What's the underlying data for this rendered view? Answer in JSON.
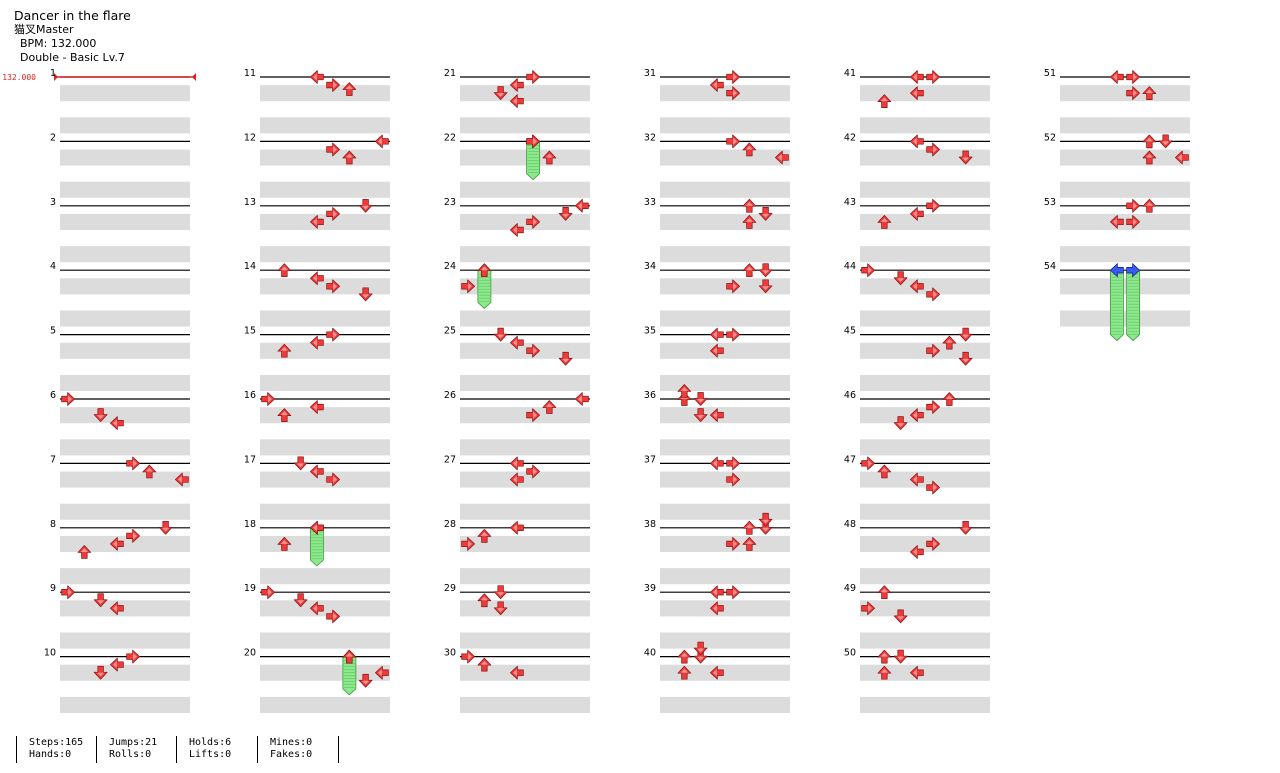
{
  "header": {
    "title": "Dancer in the flare",
    "difficulty": "猫叉Master",
    "bpm_text": "BPM: 132.000",
    "mode_text": "Double - Basic Lv.7"
  },
  "bpm_marker": "132.000",
  "stats": [
    {
      "line1": "Steps:165",
      "line2": "Hands:0"
    },
    {
      "line1": "Jumps:21",
      "line2": "Rolls:0"
    },
    {
      "line1": "Holds:6",
      "line2": "Lifts:0"
    },
    {
      "line1": "Mines:0",
      "line2": "Fakes:0"
    }
  ],
  "colors": {
    "tap": "#f03a3a",
    "hold_body": "#8ee88e",
    "blue": "#3a5af0",
    "band": "#dcdcdc"
  },
  "notes": [
    [
      6,
      0,
      0
    ],
    [
      6,
      1,
      2
    ],
    [
      6,
      1.5,
      3
    ],
    [
      7,
      0,
      4
    ],
    [
      7,
      0.5,
      5
    ],
    [
      7,
      1,
      7
    ],
    [
      8,
      0,
      6
    ],
    [
      8,
      0.5,
      4
    ],
    [
      8,
      1,
      3
    ],
    [
      8,
      1.5,
      1
    ],
    [
      9,
      0,
      0
    ],
    [
      9,
      0.5,
      2
    ],
    [
      9,
      1,
      3
    ],
    [
      10,
      0,
      4
    ],
    [
      10,
      0.5,
      3
    ],
    [
      10,
      1,
      2
    ],
    [
      11,
      0,
      3
    ],
    [
      11,
      0.5,
      4
    ],
    [
      11,
      0.75,
      5
    ],
    [
      12,
      0,
      7
    ],
    [
      12,
      0.5,
      4
    ],
    [
      12,
      1,
      5
    ],
    [
      13,
      0,
      6
    ],
    [
      13,
      0.5,
      4
    ],
    [
      13,
      1,
      3
    ],
    [
      14,
      0,
      1
    ],
    [
      14,
      0.5,
      3
    ],
    [
      14,
      1,
      4
    ],
    [
      14,
      1.5,
      6
    ],
    [
      15,
      0,
      4
    ],
    [
      15,
      0.5,
      3
    ],
    [
      15,
      1,
      1
    ],
    [
      16,
      0,
      0
    ],
    [
      16,
      0.5,
      3
    ],
    [
      16,
      1,
      1
    ],
    [
      17,
      0,
      2
    ],
    [
      17,
      0.5,
      3
    ],
    [
      17,
      1,
      4
    ],
    [
      18,
      0,
      3
    ],
    [
      18,
      1,
      1
    ],
    [
      19,
      0,
      0
    ],
    [
      19,
      0.5,
      2
    ],
    [
      19,
      1,
      3
    ],
    [
      19,
      1.5,
      4
    ],
    [
      20,
      0,
      5
    ],
    [
      20,
      1,
      7
    ],
    [
      20,
      1.5,
      6
    ],
    [
      21,
      0,
      4
    ],
    [
      21,
      0.5,
      3
    ],
    [
      21,
      1,
      2
    ],
    [
      21,
      1.5,
      3
    ],
    [
      22,
      0,
      4
    ],
    [
      22,
      1,
      5
    ],
    [
      23,
      0,
      7
    ],
    [
      23,
      0.5,
      6
    ],
    [
      23,
      1,
      4
    ],
    [
      23,
      1.5,
      3
    ],
    [
      24,
      0,
      1
    ],
    [
      24,
      1,
      0
    ],
    [
      25,
      0,
      2
    ],
    [
      25,
      0.5,
      3
    ],
    [
      25,
      1,
      4
    ],
    [
      25,
      1.5,
      6
    ],
    [
      26,
      0,
      7
    ],
    [
      26,
      0.5,
      5
    ],
    [
      26,
      1,
      4
    ],
    [
      27,
      0,
      3
    ],
    [
      27,
      0.5,
      4
    ],
    [
      27,
      1,
      3
    ],
    [
      28,
      0,
      3
    ],
    [
      28,
      0.5,
      1
    ],
    [
      28,
      1,
      0
    ],
    [
      29,
      0,
      2
    ],
    [
      29,
      0.5,
      1
    ],
    [
      29,
      1,
      2
    ],
    [
      30,
      0,
      0
    ],
    [
      30,
      0.5,
      1
    ],
    [
      30,
      1,
      3
    ],
    [
      31,
      0,
      4
    ],
    [
      31,
      0.5,
      3
    ],
    [
      31,
      1,
      4
    ],
    [
      32,
      0,
      4
    ],
    [
      32,
      0.5,
      5
    ],
    [
      32,
      1,
      7
    ],
    [
      33,
      0,
      5
    ],
    [
      33,
      0.5,
      6
    ],
    [
      33,
      1,
      5
    ],
    [
      34,
      0,
      5
    ],
    [
      34,
      0,
      6
    ],
    [
      34,
      1,
      4
    ],
    [
      34,
      1,
      6
    ],
    [
      35,
      0,
      3
    ],
    [
      35,
      0,
      4
    ],
    [
      35,
      1,
      3
    ],
    [
      36,
      0,
      1
    ],
    [
      36,
      0,
      2
    ],
    [
      36,
      -0.5,
      1
    ],
    [
      36,
      1,
      2
    ],
    [
      36,
      1,
      3
    ],
    [
      37,
      0,
      3
    ],
    [
      37,
      0,
      4
    ],
    [
      37,
      1,
      4
    ],
    [
      38,
      0,
      5
    ],
    [
      38,
      0,
      6
    ],
    [
      38,
      -0.5,
      6
    ],
    [
      38,
      1,
      4
    ],
    [
      38,
      1,
      5
    ],
    [
      39,
      0,
      3
    ],
    [
      39,
      0,
      4
    ],
    [
      39,
      1,
      3
    ],
    [
      40,
      0,
      1
    ],
    [
      40,
      0,
      2
    ],
    [
      40,
      -0.5,
      2
    ],
    [
      40,
      1,
      1
    ],
    [
      40,
      1,
      3
    ],
    [
      41,
      0,
      3
    ],
    [
      41,
      0,
      4
    ],
    [
      41,
      1,
      3
    ],
    [
      41,
      1.5,
      1
    ],
    [
      42,
      0,
      3
    ],
    [
      42,
      0.5,
      4
    ],
    [
      42,
      1,
      6
    ],
    [
      43,
      0,
      4
    ],
    [
      43,
      0.5,
      3
    ],
    [
      43,
      1,
      1
    ],
    [
      44,
      0,
      0
    ],
    [
      44,
      0.5,
      2
    ],
    [
      44,
      1,
      3
    ],
    [
      44,
      1.5,
      4
    ],
    [
      45,
      0,
      6
    ],
    [
      45,
      0.5,
      5
    ],
    [
      45,
      1,
      4
    ],
    [
      45,
      1.5,
      6
    ],
    [
      46,
      0,
      5
    ],
    [
      46,
      0.5,
      4
    ],
    [
      46,
      1,
      3
    ],
    [
      46,
      1.5,
      2
    ],
    [
      47,
      0,
      0
    ],
    [
      47,
      0.5,
      1
    ],
    [
      47,
      1,
      3
    ],
    [
      47,
      1.5,
      4
    ],
    [
      48,
      0,
      6
    ],
    [
      48,
      1,
      4
    ],
    [
      48,
      1.5,
      3
    ],
    [
      49,
      0,
      1
    ],
    [
      49,
      1,
      0
    ],
    [
      49,
      1.5,
      2
    ],
    [
      50,
      0,
      1
    ],
    [
      50,
      0,
      2
    ],
    [
      50,
      1,
      1
    ],
    [
      50,
      1,
      3
    ],
    [
      51,
      0,
      3
    ],
    [
      51,
      0,
      4
    ],
    [
      51,
      1,
      4
    ],
    [
      51,
      1,
      5
    ],
    [
      52,
      0,
      5
    ],
    [
      52,
      0,
      6
    ],
    [
      52,
      1,
      5
    ],
    [
      52,
      1,
      7
    ],
    [
      53,
      0,
      4
    ],
    [
      53,
      0,
      5
    ],
    [
      53,
      1,
      3
    ],
    [
      53,
      1,
      4
    ]
  ],
  "holds": [
    [
      18,
      0,
      3,
      0.5
    ],
    [
      20,
      0,
      5,
      0.5
    ],
    [
      22,
      0,
      4,
      0.5
    ],
    [
      24,
      0,
      1,
      0.5
    ],
    [
      54,
      0,
      3,
      1
    ],
    [
      54,
      0,
      4,
      1
    ]
  ],
  "blue_notes": [
    [
      54,
      0,
      3
    ],
    [
      54,
      0,
      4
    ]
  ]
}
